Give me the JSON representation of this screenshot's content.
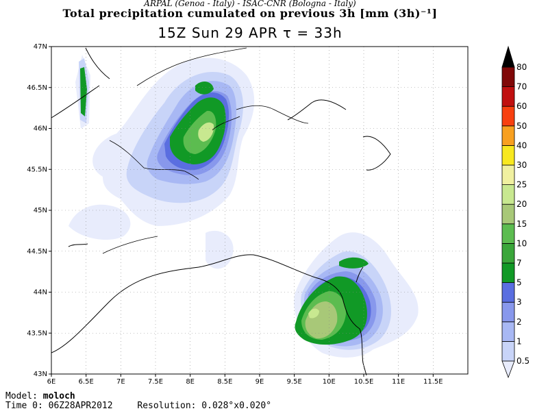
{
  "header": {
    "credits": "ARPAL (Genoa - Italy)  -  ISAC-CNR (Bologna - Italy)",
    "title": "Total precipitation cumulated on previous 3h [mm (3h)⁻¹]",
    "subtitle": "15Z Sun 29 APR   τ = 33h"
  },
  "map": {
    "lon_range": [
      6.0,
      12.0
    ],
    "lat_range": [
      43.0,
      47.0
    ],
    "lon_ticks": [
      "6E",
      "6.5E",
      "7E",
      "7.5E",
      "8E",
      "8.5E",
      "9E",
      "9.5E",
      "10E",
      "10.5E",
      "11E",
      "11.5E"
    ],
    "lat_ticks": [
      "47N",
      "46.5N",
      "46N",
      "45.5N",
      "45N",
      "44.5N",
      "44N",
      "43.5N",
      "43N"
    ],
    "grid": "dotted"
  },
  "colorbar": {
    "levels": [
      "0.5",
      "1",
      "2",
      "3",
      "5",
      "7",
      "10",
      "15",
      "20",
      "25",
      "30",
      "40",
      "50",
      "60",
      "70",
      "80"
    ],
    "colors": [
      "#e8ecfc",
      "#c8d4f8",
      "#a8b8f4",
      "#8898ec",
      "#5a6ee0",
      "#119926",
      "#3aa63a",
      "#5cbc50",
      "#a8c878",
      "#c8e890",
      "#f0f0a0",
      "#f8e820",
      "#f8a020",
      "#f84010",
      "#c01010",
      "#800808",
      "#000000"
    ]
  },
  "footer": {
    "model_label": "Model:",
    "model_value": "moloch",
    "time_label": "Time 0:",
    "time_value": "06Z28APR2012",
    "resolution_label": "Resolution:",
    "resolution_value": "0.028°x0.020°"
  }
}
